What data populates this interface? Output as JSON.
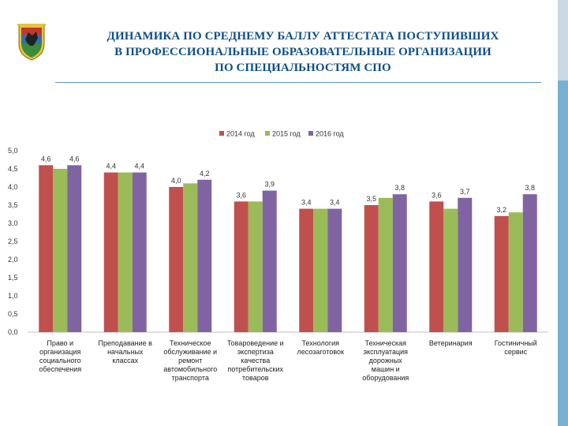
{
  "header": {
    "title_lines": [
      "ДИНАМИКА ПО СРЕДНЕМУ БАЛЛУ АТТЕСТАТА ПОСТУПИВШИХ",
      "В ПРОФЕССИОНАЛЬНЫЕ ОБРАЗОВАТЕЛЬНЫЕ ОРГАНИЗАЦИИ",
      "ПО СПЕЦИАЛЬНОСТЯМ  СПО"
    ]
  },
  "colors": {
    "title": "#0d4f86",
    "accent_band": "#7ab0d2"
  },
  "chart_data": {
    "type": "bar",
    "title": "",
    "xlabel": "",
    "ylabel": "",
    "ylim": [
      0,
      5
    ],
    "yticks": [
      "0,0",
      "0,5",
      "1,0",
      "1,5",
      "2,0",
      "2,5",
      "3,0",
      "3,5",
      "4,0",
      "4,5",
      "5,0"
    ],
    "legend_position": "top",
    "categories": [
      [
        "Право и",
        "организация",
        "социального",
        "обеспечения"
      ],
      [
        "Преподавание в",
        "начальных",
        "классах"
      ],
      [
        "Техническое",
        "обслуживание и",
        "ремонт",
        "автомобильного",
        "транспорта"
      ],
      [
        "Товароведение и",
        "экспертиза",
        "качества",
        "потребительских",
        "товаров"
      ],
      [
        "Технология",
        "лесозаготовок"
      ],
      [
        "Техническая",
        "эксплуатация",
        "дорожных",
        "машин и",
        "оборудования"
      ],
      [
        "Ветеринария"
      ],
      [
        "Гостиничный",
        "сервис"
      ]
    ],
    "series": [
      {
        "name": "2014 год",
        "color": "#c0504d",
        "values": [
          4.6,
          4.4,
          4.0,
          3.6,
          3.4,
          3.5,
          3.6,
          3.2
        ],
        "labels": [
          "4,6",
          "4,4",
          "4,0",
          "3,6",
          "3,4",
          "3,5",
          "3,6",
          "3,2"
        ]
      },
      {
        "name": "2015 год",
        "color": "#9bbb59",
        "values": [
          4.5,
          4.4,
          4.1,
          3.6,
          3.4,
          3.7,
          3.4,
          3.3
        ],
        "labels": [
          "",
          "",
          "",
          "",
          "",
          "",
          "",
          ""
        ]
      },
      {
        "name": "2016 год",
        "color": "#8064a2",
        "values": [
          4.6,
          4.4,
          4.2,
          3.9,
          3.4,
          3.8,
          3.7,
          3.8
        ],
        "labels": [
          "4,6",
          "4,4",
          "4,2",
          "3,9",
          "3,4",
          "3,8",
          "3,7",
          "3,8"
        ]
      }
    ]
  }
}
